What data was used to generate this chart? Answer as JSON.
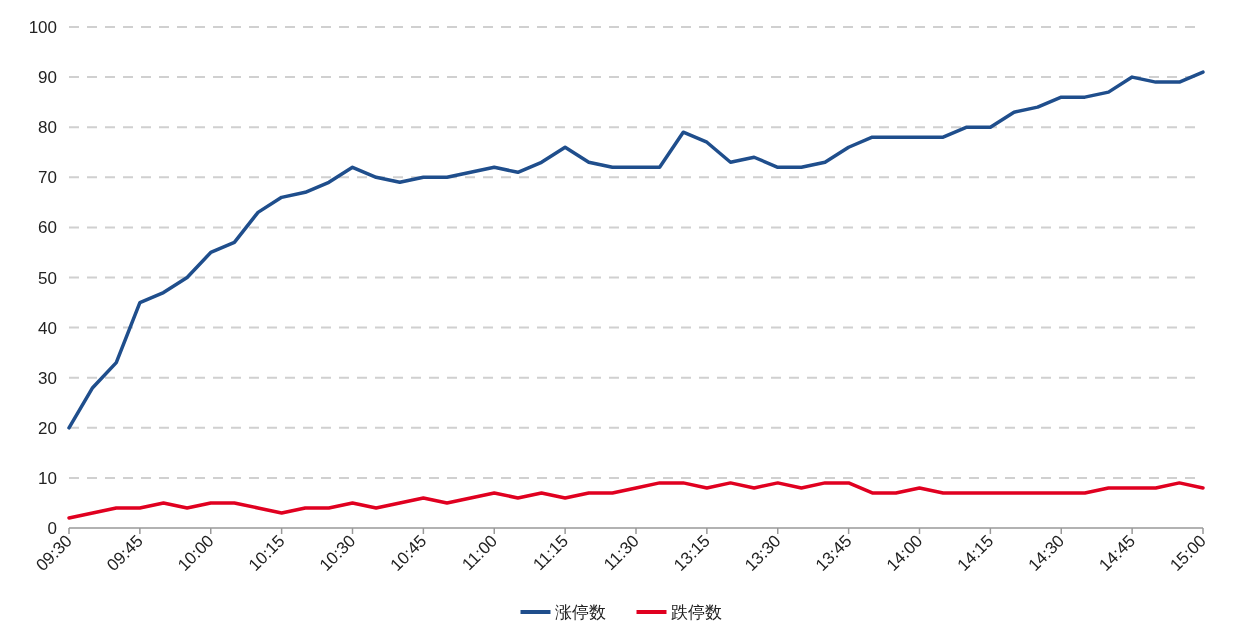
{
  "chart_data": {
    "type": "line",
    "categories": [
      "09:30",
      null,
      null,
      "09:45",
      null,
      null,
      "10:00",
      null,
      null,
      "10:15",
      null,
      null,
      "10:30",
      null,
      null,
      "10:45",
      null,
      null,
      "11:00",
      null,
      null,
      "11:15",
      null,
      null,
      "11:30",
      null,
      null,
      "13:15",
      null,
      null,
      "13:30",
      null,
      null,
      "13:45",
      null,
      null,
      "14:00",
      null,
      null,
      "14:15",
      null,
      null,
      "14:30",
      null,
      null,
      "14:45",
      null,
      null,
      "15:00"
    ],
    "series": [
      {
        "name": "涨停数",
        "color": "#1f4e8c",
        "values": [
          20,
          28,
          33,
          45,
          47,
          50,
          55,
          57,
          63,
          66,
          67,
          69,
          72,
          70,
          69,
          70,
          70,
          71,
          72,
          71,
          73,
          76,
          73,
          72,
          72,
          72,
          79,
          77,
          73,
          74,
          72,
          72,
          73,
          76,
          78,
          78,
          78,
          78,
          80,
          80,
          83,
          84,
          86,
          86,
          87,
          90,
          89,
          89,
          91
        ]
      },
      {
        "name": "跌停数",
        "color": "#e00020",
        "values": [
          2,
          3,
          4,
          4,
          5,
          4,
          5,
          5,
          4,
          3,
          4,
          4,
          5,
          4,
          5,
          6,
          5,
          6,
          7,
          6,
          7,
          6,
          7,
          7,
          8,
          9,
          9,
          8,
          9,
          8,
          9,
          8,
          9,
          9,
          7,
          7,
          8,
          7,
          7,
          7,
          7,
          7,
          7,
          7,
          8,
          8,
          8,
          9,
          8
        ]
      }
    ],
    "ylim": [
      0,
      100
    ],
    "yticks": [
      0,
      10,
      20,
      30,
      40,
      50,
      60,
      70,
      80,
      90,
      100
    ],
    "grid": "y",
    "legend": "bottom",
    "marker": "none",
    "line_style": "solid"
  }
}
